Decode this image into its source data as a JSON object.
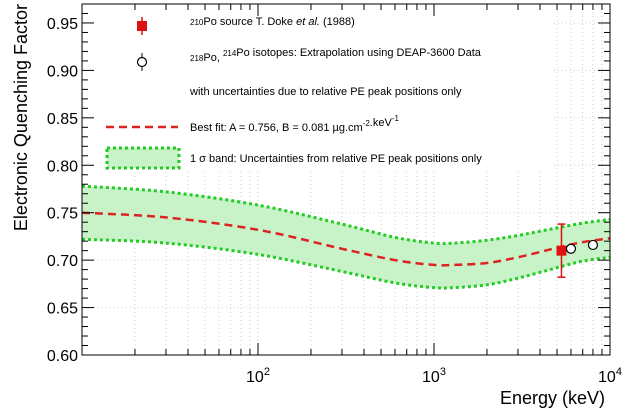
{
  "chart_data": {
    "type": "line",
    "xlabel": "Energy (keV)",
    "ylabel": "Electronic Quenching Factor",
    "x_scale": "log",
    "xlim": [
      10,
      10000
    ],
    "ylim": [
      0.6,
      0.97
    ],
    "grid": true,
    "y_ticks": [
      "0.60",
      "0.65",
      "0.70",
      "0.75",
      "0.80",
      "0.85",
      "0.90",
      "0.95"
    ],
    "x_ticks": [
      {
        "value": 100,
        "base": "10",
        "exp": "2"
      },
      {
        "value": 1000,
        "base": "10",
        "exp": "3"
      },
      {
        "value": 10000,
        "base": "10",
        "exp": "4"
      }
    ],
    "legend_position": "top-left",
    "legend": [
      {
        "key": "doke",
        "parts": [
          {
            "t": "210",
            "sup": true
          },
          {
            "t": "Po source T. Doke "
          },
          {
            "t": "et al.",
            "it": true
          },
          {
            "t": " (1988)"
          }
        ]
      },
      {
        "key": "deap",
        "parts": [
          {
            "t": "218",
            "sup": true
          },
          {
            "t": "Po, "
          },
          {
            "t": "214",
            "sup": true
          },
          {
            "t": "Po isotopes: Extrapolation using DEAP-3600 Data"
          }
        ]
      },
      {
        "key": "deap-cont",
        "parts": [
          {
            "t": "with uncertainties due to relative PE peak positions only"
          }
        ]
      },
      {
        "key": "fit",
        "parts": [
          {
            "t": "Best fit:  A = 0.756, B = 0.081 µg.cm"
          },
          {
            "t": "-2",
            "sup": true
          },
          {
            "t": ".keV"
          },
          {
            "t": "-1",
            "sup": true
          }
        ]
      },
      {
        "key": "band",
        "parts": [
          {
            "t": "1 σ band: Uncertainties from relative PE peak positions only"
          }
        ]
      }
    ],
    "series": [
      {
        "name": "Best fit",
        "style": "dashed",
        "color": "#dd2222",
        "x": [
          10,
          30,
          100,
          300,
          600,
          1000,
          1300,
          2000,
          3000,
          5000,
          7000,
          10000
        ],
        "y": [
          0.75,
          0.745,
          0.732,
          0.712,
          0.7,
          0.695,
          0.695,
          0.697,
          0.703,
          0.713,
          0.719,
          0.723
        ]
      },
      {
        "name": "1 σ band",
        "type": "band",
        "color": "#22cc22",
        "fill": "#c8f3c8",
        "x": [
          10,
          30,
          100,
          300,
          600,
          1000,
          1300,
          2000,
          3000,
          5000,
          7000,
          10000
        ],
        "y_low": [
          0.722,
          0.718,
          0.706,
          0.688,
          0.676,
          0.671,
          0.671,
          0.674,
          0.681,
          0.692,
          0.699,
          0.703
        ],
        "y_high": [
          0.778,
          0.772,
          0.758,
          0.738,
          0.724,
          0.718,
          0.718,
          0.721,
          0.726,
          0.734,
          0.739,
          0.743
        ]
      },
      {
        "name": "Doke",
        "type": "errorbar",
        "marker": "filled-square",
        "color": "#dd1111",
        "x": [
          5300
        ],
        "y": [
          0.71
        ],
        "yerr": [
          0.028
        ]
      },
      {
        "name": "DEAP-3600 extrapolation",
        "type": "errorbar",
        "marker": "open-circle",
        "color": "#000000",
        "x": [
          6000,
          8000
        ],
        "y": [
          0.712,
          0.716
        ],
        "yerr": [
          0.003,
          0.003
        ]
      }
    ]
  }
}
